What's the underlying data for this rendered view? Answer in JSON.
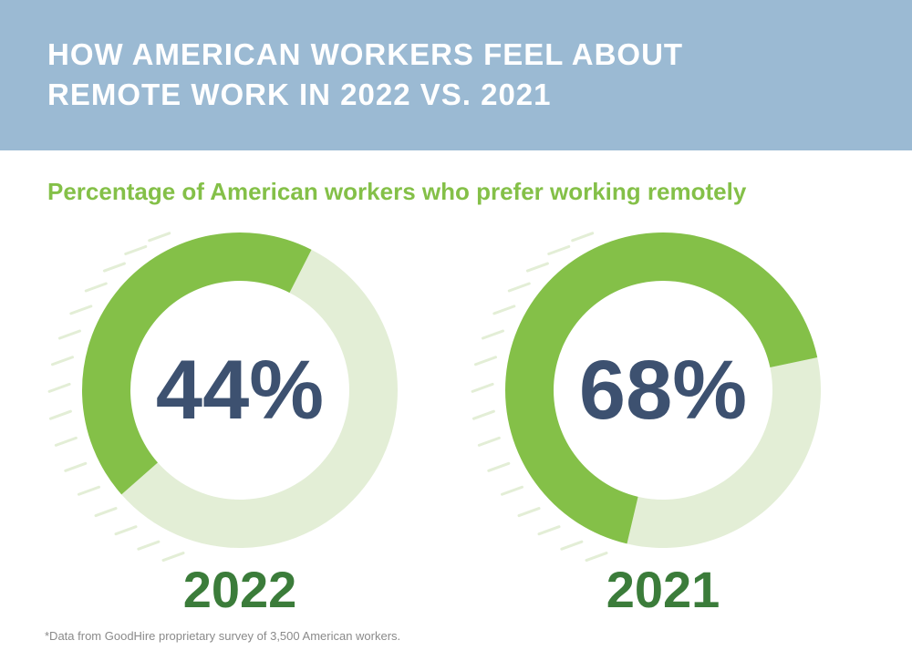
{
  "header": {
    "title_line1": "HOW AMERICAN WORKERS FEEL ABOUT",
    "title_line2": "REMOTE WORK IN 2022 VS. 2021"
  },
  "subtitle": "Percentage of American workers who prefer working remotely",
  "footnote": "*Data from GoodHire proprietary survey of 3,500 American workers.",
  "colors": {
    "header_bg": "#9bbad3",
    "accent_green": "#84c048",
    "track_light": "#e3eed6",
    "percent_text": "#3d5170",
    "year_text": "#3b7c3a"
  },
  "chart_data": [
    {
      "type": "pie",
      "values": [
        44,
        56
      ],
      "center_label": "44%",
      "category_label": "2022"
    },
    {
      "type": "pie",
      "values": [
        68,
        32
      ],
      "center_label": "68%",
      "category_label": "2021"
    }
  ]
}
